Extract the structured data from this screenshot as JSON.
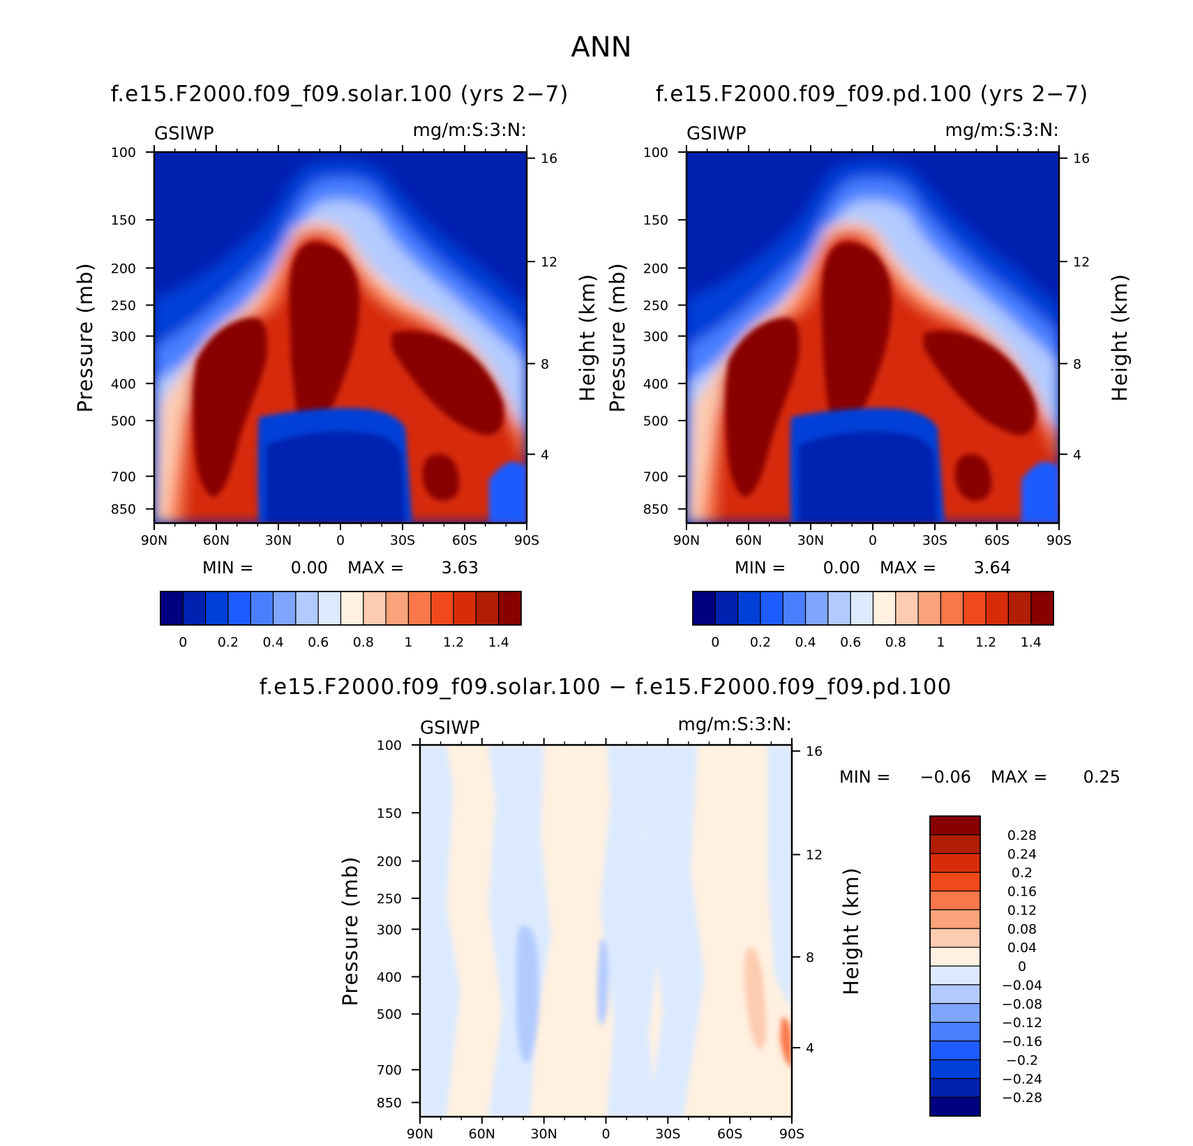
{
  "figure": {
    "title": "ANN"
  },
  "colors": {
    "absolute_scale": [
      "#000080",
      "#0020b0",
      "#0040d8",
      "#1f5cff",
      "#4a7fff",
      "#7fa6ff",
      "#b2cbff",
      "#dceaff",
      "#fff0e0",
      "#fdcbb0",
      "#fba37a",
      "#f9774a",
      "#f04a1c",
      "#d72c0a",
      "#b01e05",
      "#880000"
    ],
    "difference_scale": [
      "#880000",
      "#b01e05",
      "#d72c0a",
      "#f04a1c",
      "#f9774a",
      "#fba37a",
      "#fdcbb0",
      "#fff0e0",
      "#dceaff",
      "#b2cbff",
      "#7fa6ff",
      "#4a7fff",
      "#1f5cff",
      "#0040d8",
      "#0020b0",
      "#000080"
    ]
  },
  "chart_data": [
    {
      "type": "heatmap",
      "id": "panel_solar",
      "title": "f.e15.F2000.f09_f09.solar.100 (yrs 2−7)",
      "variable": "GSIWP",
      "units": "mg/m:S:3:N:",
      "xlabel": "",
      "ylabel": "Pressure (mb)",
      "ylabel_right": "Height (km)",
      "x_ticks": [
        "90N",
        "60N",
        "30N",
        "0",
        "30S",
        "60S",
        "90S"
      ],
      "y_ticks": [
        "100",
        "150",
        "200",
        "250",
        "300",
        "400",
        "500",
        "700",
        "850"
      ],
      "y_ticks_right": [
        "16",
        "12",
        "8",
        "4"
      ],
      "ylim": [
        100,
        925
      ],
      "min_label": "MIN =",
      "min_value": "0.00",
      "max_label": "MAX =",
      "max_value": "3.63",
      "colorbar_levels": [
        0,
        0.1,
        0.2,
        0.3,
        0.4,
        0.5,
        0.6,
        0.7,
        0.8,
        0.9,
        1,
        1.1,
        1.2,
        1.3,
        1.4
      ],
      "colorbar_labels": [
        "0",
        "0.2",
        "0.4",
        "0.6",
        "0.8",
        "1",
        "1.2",
        "1.4"
      ]
    },
    {
      "type": "heatmap",
      "id": "panel_pd",
      "title": "f.e15.F2000.f09_f09.pd.100 (yrs 2−7)",
      "variable": "GSIWP",
      "units": "mg/m:S:3:N:",
      "xlabel": "",
      "ylabel": "Pressure (mb)",
      "ylabel_right": "Height (km)",
      "x_ticks": [
        "90N",
        "60N",
        "30N",
        "0",
        "30S",
        "60S",
        "90S"
      ],
      "y_ticks": [
        "100",
        "150",
        "200",
        "250",
        "300",
        "400",
        "500",
        "700",
        "850"
      ],
      "y_ticks_right": [
        "16",
        "12",
        "8",
        "4"
      ],
      "ylim": [
        100,
        925
      ],
      "min_label": "MIN =",
      "min_value": "0.00",
      "max_label": "MAX =",
      "max_value": "3.64",
      "colorbar_levels": [
        0,
        0.1,
        0.2,
        0.3,
        0.4,
        0.5,
        0.6,
        0.7,
        0.8,
        0.9,
        1,
        1.1,
        1.2,
        1.3,
        1.4
      ],
      "colorbar_labels": [
        "0",
        "0.2",
        "0.4",
        "0.6",
        "0.8",
        "1",
        "1.2",
        "1.4"
      ]
    },
    {
      "type": "heatmap",
      "id": "panel_diff",
      "title": "f.e15.F2000.f09_f09.solar.100 − f.e15.F2000.f09_f09.pd.100",
      "variable": "GSIWP",
      "units": "mg/m:S:3:N:",
      "xlabel": "",
      "ylabel": "Pressure (mb)",
      "ylabel_right": "Height (km)",
      "x_ticks": [
        "90N",
        "60N",
        "30N",
        "0",
        "30S",
        "60S",
        "90S"
      ],
      "y_ticks": [
        "100",
        "150",
        "200",
        "250",
        "300",
        "400",
        "500",
        "700",
        "850"
      ],
      "y_ticks_right": [
        "16",
        "12",
        "8",
        "4"
      ],
      "ylim": [
        100,
        925
      ],
      "min_label": "MIN =",
      "min_value": "−0.06",
      "max_label": "MAX =",
      "max_value": "0.25",
      "colorbar_levels": [
        0.28,
        0.24,
        0.2,
        0.16,
        0.12,
        0.08,
        0.04,
        0,
        -0.04,
        -0.08,
        -0.12,
        -0.16,
        -0.2,
        -0.24,
        -0.28
      ],
      "colorbar_labels": [
        "0.28",
        "0.24",
        "0.2",
        "0.16",
        "0.12",
        "0.08",
        "0.04",
        "0",
        "−0.04",
        "−0.08",
        "−0.12",
        "−0.16",
        "−0.2",
        "−0.24",
        "−0.28"
      ]
    }
  ]
}
